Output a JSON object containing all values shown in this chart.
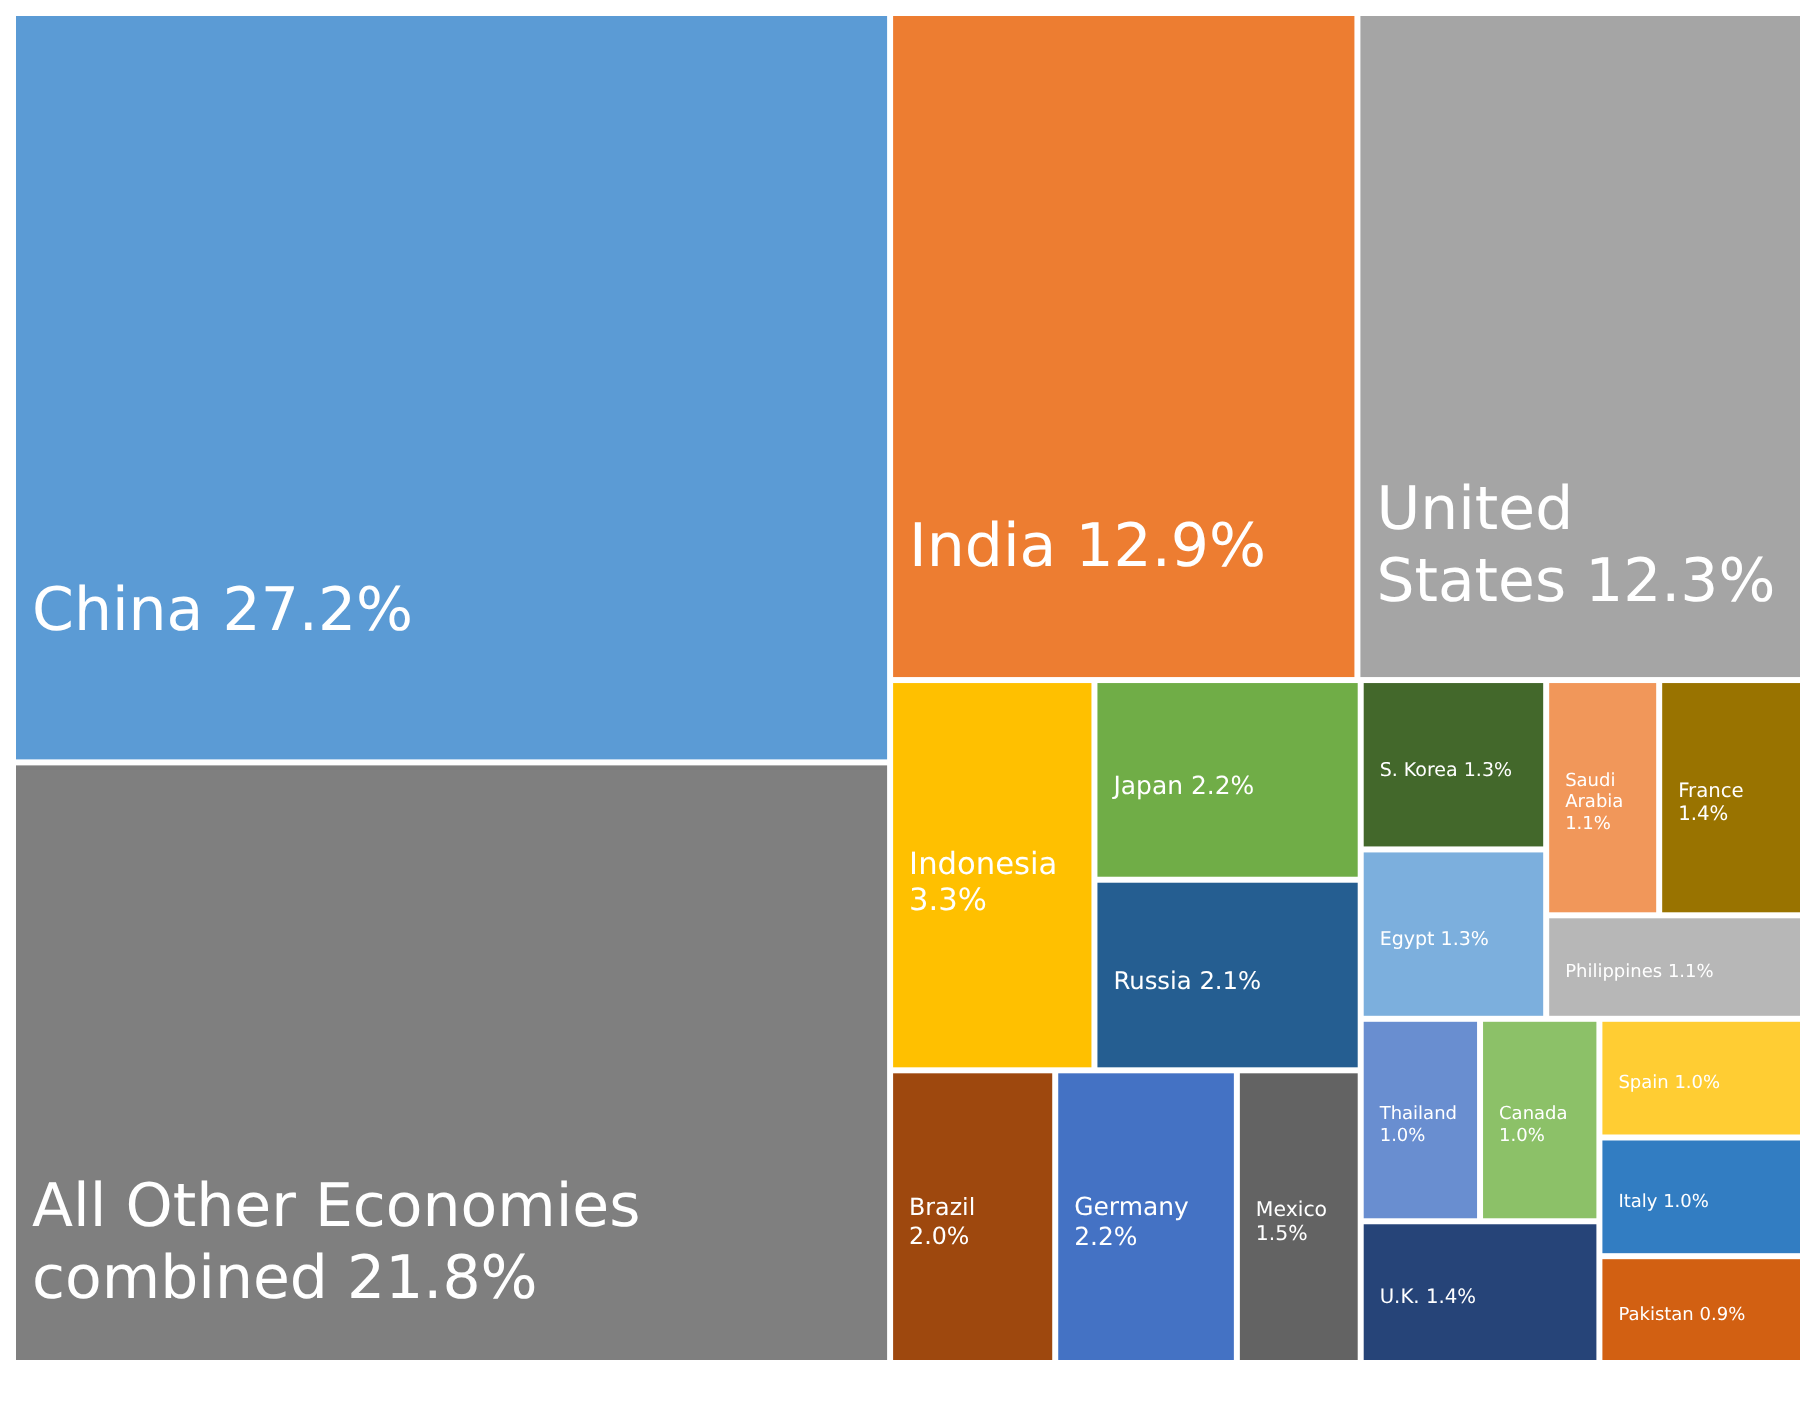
{
  "chart_data": {
    "type": "other",
    "categories": [
      "China",
      "All Other Economies combined",
      "India",
      "United States",
      "Indonesia",
      "Japan",
      "Russia",
      "Brazil",
      "Germany",
      "Mexico",
      "S. Korea",
      "Egypt",
      "Saudi Arabia",
      "France",
      "Philippines",
      "Thailand",
      "Canada",
      "U.K.",
      "Spain",
      "Italy",
      "Pakistan"
    ],
    "values": [
      27.2,
      21.8,
      12.9,
      12.3,
      3.3,
      2.2,
      2.1,
      2.0,
      2.2,
      1.5,
      1.3,
      1.3,
      1.1,
      1.4,
      1.1,
      1.0,
      1.0,
      1.4,
      1.0,
      1.0,
      0.9
    ],
    "value_labels": [
      "27.2%",
      "21.8%",
      "12.9%",
      "12.3%",
      "3.3%",
      "2.2%",
      "2.1%",
      "2.0%",
      "2.2%",
      "1.5%",
      "1.3%",
      "1.3%",
      "1.1%",
      "1.4%",
      "1.1%",
      "1.0%",
      "1.0%",
      "1.4%",
      "1.0%",
      "1.0%",
      "0.9%"
    ],
    "colors": [
      "#5b9bd5",
      "#7f7f7f",
      "#ed7d31",
      "#a5a5a5",
      "#ffc000",
      "#70ad47",
      "#255e91",
      "#9e480e",
      "#4472c4",
      "#636363",
      "#43682b",
      "#7cafdd",
      "#f1975a",
      "#997300",
      "#b7b7b7",
      "#698ed0",
      "#8cc168",
      "#264478",
      "#ffcd33",
      "#327dc2",
      "#d26012"
    ]
  }
}
